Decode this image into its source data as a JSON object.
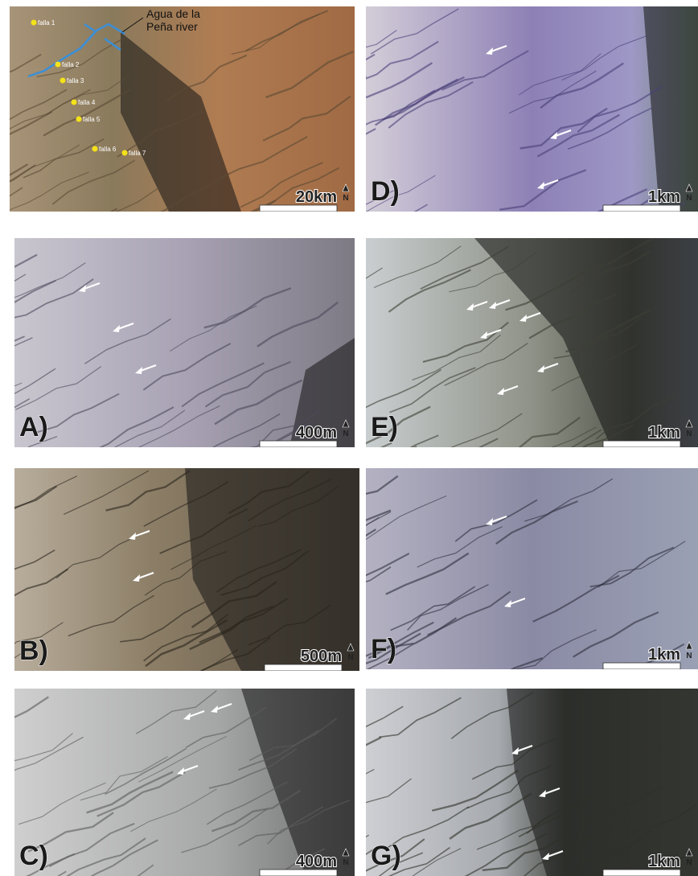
{
  "overview": {
    "river_label": [
      "Agua de la",
      "Peña river"
    ],
    "scale": "20km",
    "north": "N",
    "faults": [
      "falla 1",
      "falla 2",
      "falla 3",
      "falla 4",
      "falla 5",
      "falla 6",
      "falla 7"
    ]
  },
  "panels": [
    {
      "label": "A)",
      "scale": "400m",
      "north": "N"
    },
    {
      "label": "B)",
      "scale": "500m",
      "north": "N"
    },
    {
      "label": "C)",
      "scale": "400m",
      "north": "N"
    },
    {
      "label": "D)",
      "scale": "1km",
      "north": "N"
    },
    {
      "label": "E)",
      "scale": "1km",
      "north": "N"
    },
    {
      "label": "F)",
      "scale": "1km",
      "north": "N"
    },
    {
      "label": "G)",
      "scale": "1km",
      "north": "N"
    }
  ]
}
